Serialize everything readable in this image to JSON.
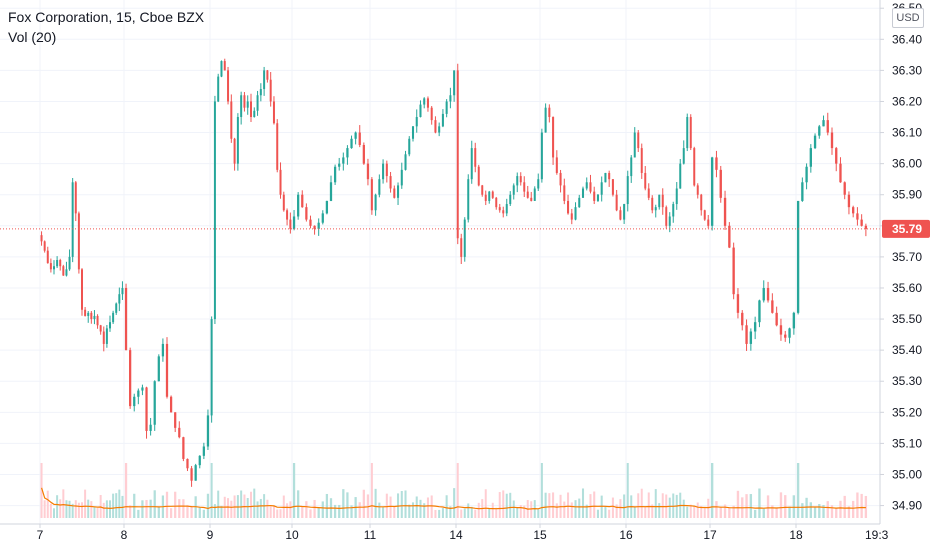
{
  "legend": {
    "title": "Fox Corporation, 15, Cboe BZX",
    "volume_label": "Vol (20)"
  },
  "price_scale": {
    "currency": "USD",
    "ticks": [
      "36.50",
      "36.40",
      "36.30",
      "36.20",
      "36.10",
      "36.00",
      "35.90",
      "35.80",
      "35.70",
      "35.60",
      "35.50",
      "35.40",
      "35.30",
      "35.20",
      "35.10",
      "35.00",
      "34.90"
    ],
    "last_price_label": "35.79"
  },
  "time_axis": {
    "labels": [
      "7",
      "8",
      "9",
      "10",
      "11",
      "14",
      "15",
      "16",
      "17",
      "18"
    ],
    "corner_label": "19:3"
  },
  "colors": {
    "up": "#26a69a",
    "down": "#ef5350",
    "volume_up": "#b2dfdb",
    "volume_down": "#ffcdd2",
    "volume_ma": "#f57c00",
    "grid": "#f0f3fa",
    "axis_text": "#131722",
    "last_price": "#ef5350"
  },
  "chart_data": {
    "type": "candlestick",
    "symbol": "Fox Corporation",
    "interval": "15",
    "exchange": "Cboe BZX",
    "ylim": [
      34.86,
      36.52
    ],
    "last_price": 35.79,
    "sessions": [
      {
        "label": "7",
        "closes": [
          35.75,
          35.72,
          35.68,
          35.66,
          35.67,
          35.69,
          35.67,
          35.64,
          35.66,
          35.7,
          35.94,
          35.84,
          35.66,
          35.53,
          35.51,
          35.52,
          35.5,
          35.51,
          35.48,
          35.46,
          35.42,
          35.47,
          35.49,
          35.52,
          35.55,
          35.58,
          35.6
        ]
      },
      {
        "label": "8",
        "closes": [
          35.4,
          35.22,
          35.25,
          35.27,
          35.28,
          35.14,
          35.16,
          35.3,
          35.38,
          35.42,
          35.25,
          35.2,
          35.15,
          35.12,
          35.05,
          35.02,
          34.98,
          35.03,
          35.06,
          35.09,
          35.19
        ]
      },
      {
        "label": "9",
        "closes": [
          35.5,
          36.2,
          36.28,
          36.33,
          36.3,
          36.2,
          36.08,
          36.0,
          36.15,
          36.22,
          36.18,
          36.2,
          36.15,
          36.17,
          36.22,
          36.24,
          36.3,
          36.27,
          36.2,
          36.13,
          35.98,
          35.9,
          35.85,
          35.82,
          35.79
        ]
      },
      {
        "label": "10",
        "closes": [
          35.83,
          35.9,
          35.86,
          35.82,
          35.8,
          35.79,
          35.81,
          35.84,
          35.88,
          35.94,
          35.99,
          36.0,
          36.02,
          36.05,
          36.08,
          36.1,
          36.06,
          36.0,
          35.95
        ]
      },
      {
        "label": "11",
        "closes": [
          35.85,
          35.9,
          35.95,
          36.0,
          35.96,
          35.92,
          35.89,
          35.93,
          35.98,
          36.03,
          36.08,
          36.12,
          36.15,
          36.19,
          36.21,
          36.18,
          36.14,
          36.1,
          36.12,
          36.16,
          36.2,
          36.22,
          36.3
        ]
      },
      {
        "label": "14",
        "closes": [
          35.76,
          35.7,
          35.82,
          35.95,
          36.05,
          35.99,
          35.93,
          35.9,
          35.88,
          35.91,
          35.89,
          35.86,
          35.85,
          35.84,
          35.87,
          35.9,
          35.93,
          35.96,
          35.94,
          35.91,
          35.89,
          35.88,
          35.92,
          35.95
        ]
      },
      {
        "label": "15",
        "closes": [
          36.1,
          36.18,
          36.15,
          36.02,
          35.97,
          35.93,
          35.88,
          35.84,
          35.82,
          35.86,
          35.89,
          35.92,
          35.94,
          35.91,
          35.88,
          35.9,
          35.94,
          35.97,
          35.95,
          35.9,
          35.85,
          35.82,
          35.87
        ]
      },
      {
        "label": "16",
        "closes": [
          35.96,
          36.02,
          36.1,
          36.05,
          35.97,
          35.92,
          35.89,
          35.85,
          35.86,
          35.9,
          35.86,
          35.8,
          35.83,
          35.87,
          35.92,
          36.0,
          36.05,
          36.15,
          36.05,
          35.93,
          35.9,
          35.85,
          35.82,
          35.8
        ]
      },
      {
        "label": "17",
        "closes": [
          36.02,
          35.98,
          35.89,
          35.8,
          35.73,
          35.58,
          35.52,
          35.48,
          35.42,
          35.46,
          35.49,
          35.56,
          35.6,
          35.56,
          35.52,
          35.48,
          35.45,
          35.44,
          35.47,
          35.52
        ]
      },
      {
        "label": "18",
        "closes": [
          35.88,
          35.94,
          35.99,
          36.05,
          36.09,
          36.12,
          36.14,
          36.1,
          36.05,
          36.0,
          35.94,
          35.9,
          35.86,
          35.84,
          35.82,
          35.8,
          35.79
        ]
      }
    ]
  }
}
